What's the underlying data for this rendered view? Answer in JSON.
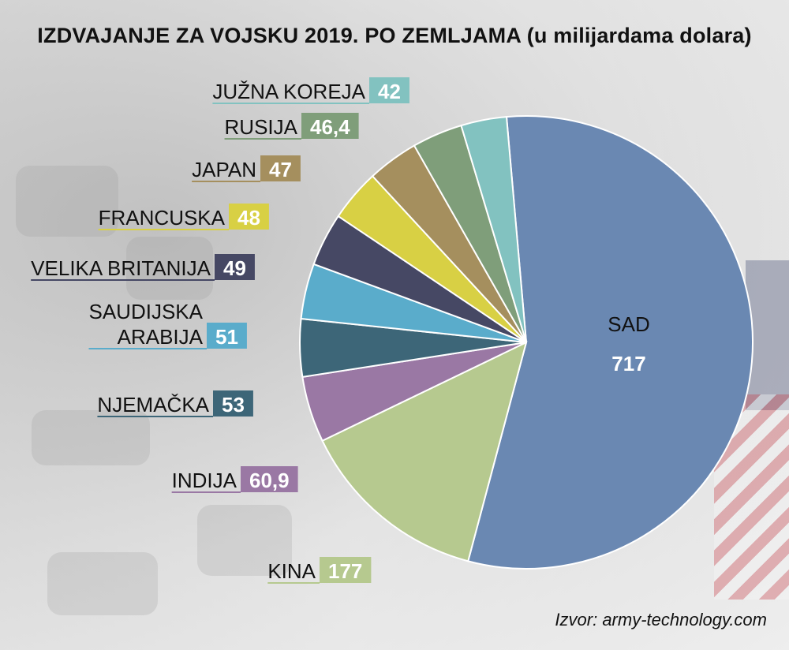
{
  "title": "IZDVAJANJE ZA VOJSKU 2019. PO ZEMLJAMA (u milijardama dolara)",
  "source": "Izvor: army-technology.com",
  "chart_data": {
    "type": "pie",
    "title": "IZDVAJANJE ZA VOJSKU 2019. PO ZEMLJAMA (u milijardama dolara)",
    "slices": [
      {
        "label": "SAD",
        "value": 717,
        "value_text": "717",
        "color": "#6a88b2"
      },
      {
        "label": "KINA",
        "value": 177,
        "value_text": "177",
        "color": "#b6c98f"
      },
      {
        "label": "INDIJA",
        "value": 60.9,
        "value_text": "60,9",
        "color": "#9a78a4"
      },
      {
        "label": "NJEMAČKA",
        "value": 53,
        "value_text": "53",
        "color": "#3d6678"
      },
      {
        "label": "SAUDIJSKA ARABIJA",
        "label_lines": [
          "SAUDIJSKA",
          "ARABIJA"
        ],
        "value": 51,
        "value_text": "51",
        "color": "#5aaccb"
      },
      {
        "label": "VELIKA BRITANIJA",
        "value": 49,
        "value_text": "49",
        "color": "#464864"
      },
      {
        "label": "FRANCUSKA",
        "value": 48,
        "value_text": "48",
        "color": "#d8d044"
      },
      {
        "label": "JAPAN",
        "value": 47,
        "value_text": "47",
        "color": "#a58f5e"
      },
      {
        "label": "RUSIJA",
        "value": 46.4,
        "value_text": "46,4",
        "color": "#7f9e7a"
      },
      {
        "label": "JUŽNA KOREJA",
        "value": 42,
        "value_text": "42",
        "color": "#82c2c0"
      }
    ]
  }
}
